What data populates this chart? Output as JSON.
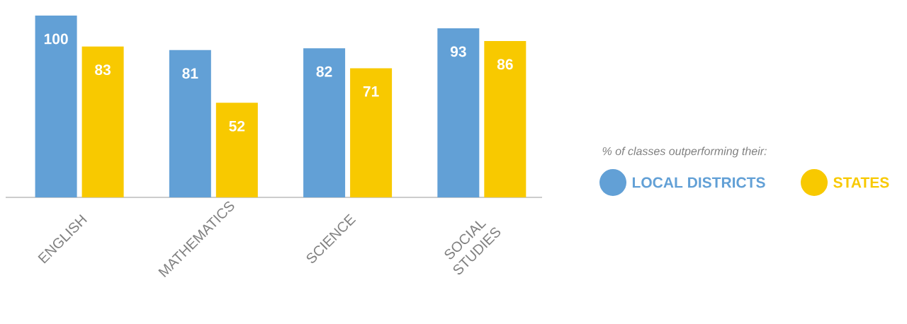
{
  "chart_data": {
    "type": "bar",
    "categories": [
      "ENGLISH",
      "MATHEMATICS",
      "SCIENCE",
      "SOCIAL STUDIES"
    ],
    "series": [
      {
        "name": "LOCAL DISTRICTS",
        "color": "#62a0d6",
        "values": [
          100,
          81,
          82,
          93
        ]
      },
      {
        "name": "STATES",
        "color": "#f8c900",
        "values": [
          83,
          52,
          71,
          86
        ]
      }
    ],
    "data_labels": true,
    "legend": "right",
    "legend_title": "% of classes outperforming their:"
  }
}
